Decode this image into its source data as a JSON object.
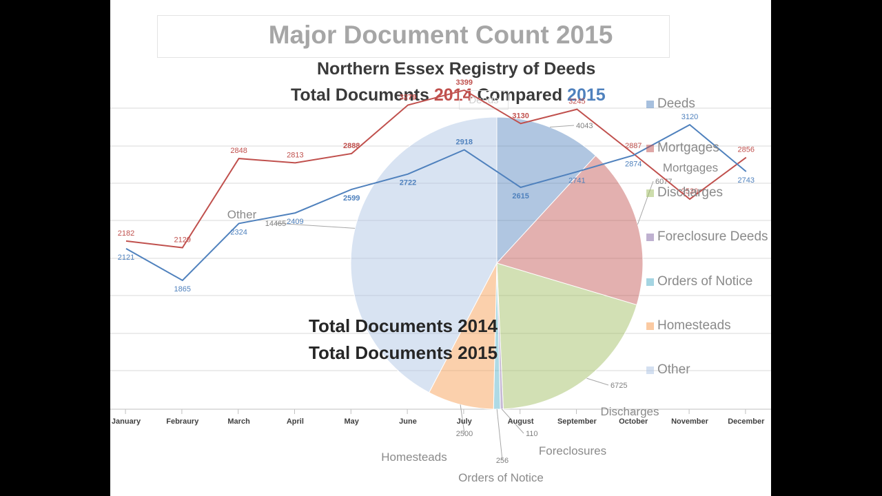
{
  "title": "Major Document Count 2015",
  "subtitle_line1": "Northern Essex Registry of Deeds",
  "subtitle_line2": {
    "prefix": "Total Documents ",
    "year_a": "2014",
    "middle": " Compared  ",
    "year_b": "2015"
  },
  "center_labels": [
    "Total Documents 2014",
    "Total Documents 2015"
  ],
  "ghost_label": "Deeds",
  "colors": {
    "series_2014": "#c0504d",
    "series_2015": "#4f81bd",
    "deeds": "#4f81bd",
    "mortgages": "#c0504d",
    "discharges": "#9bbb59",
    "foreclosures": "#8064a2",
    "orders": "#4bacc6",
    "homesteads": "#f79646",
    "other": "#a9c1e3"
  },
  "chart_data": [
    {
      "type": "line",
      "categories": [
        "January",
        "Febraury",
        "March",
        "April",
        "May",
        "June",
        "July",
        "August",
        "September",
        "October",
        "November",
        "December"
      ],
      "series": [
        {
          "name": "Total Documents 2014",
          "values": [
            2182,
            2129,
            2848,
            2813,
            2888,
            3279,
            3399,
            3130,
            3245,
            2887,
            2520,
            2856
          ]
        },
        {
          "name": "Total Documents 2015",
          "values": [
            2121,
            1865,
            2324,
            2409,
            2599,
            2722,
            2918,
            2615,
            2741,
            2874,
            3120,
            2743
          ]
        }
      ],
      "grid": true,
      "legend": "none"
    },
    {
      "type": "pie",
      "slices": [
        {
          "label": "Deeds",
          "value": 4043
        },
        {
          "label": "Mortgages",
          "value": 6077
        },
        {
          "label": "Discharges",
          "value": 6725
        },
        {
          "label": "Foreclosures",
          "value": 110
        },
        {
          "label": "Orders of Notice",
          "value": 256
        },
        {
          "label": "Homesteads",
          "value": 2500
        },
        {
          "label": "Other",
          "value": 14465
        }
      ],
      "legend_entries": [
        "Deeds",
        "Mortgages",
        "Discharges",
        "Foreclosure Deeds",
        "Orders of Notice",
        "Homesteads",
        "Other"
      ],
      "legend": "right"
    }
  ]
}
